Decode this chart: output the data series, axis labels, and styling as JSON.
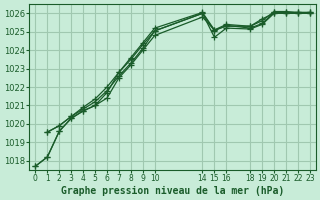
{
  "background_color": "#c8ecd8",
  "grid_color": "#a0c8b0",
  "line_color": "#1a5c2a",
  "text_color": "#1a5c2a",
  "xlabel": "Graphe pression niveau de la mer (hPa)",
  "ylim": [
    1017.5,
    1026.5
  ],
  "yticks": [
    1018,
    1019,
    1020,
    1021,
    1022,
    1023,
    1024,
    1025,
    1026
  ],
  "xtick_positions": [
    0,
    1,
    2,
    3,
    4,
    5,
    6,
    7,
    8,
    9,
    10,
    14,
    15,
    16,
    18,
    19,
    20,
    21,
    22,
    23
  ],
  "xtick_labels": [
    "0",
    "1",
    "2",
    "3",
    "4",
    "5",
    "6",
    "7",
    "8",
    "9",
    "10",
    "14",
    "15",
    "16",
    "18",
    "19",
    "20",
    "21",
    "22",
    "23"
  ],
  "lines": [
    {
      "x": [
        0,
        1,
        2,
        3,
        4,
        5,
        6,
        7,
        8,
        9,
        10,
        14,
        15,
        16,
        18,
        19,
        20,
        21,
        22,
        23
      ],
      "y": [
        1017.7,
        1018.2,
        1019.6,
        1020.3,
        1020.7,
        1021.0,
        1021.7,
        1022.8,
        1023.5,
        1024.3,
        1025.05,
        1026.0,
        1024.7,
        1025.2,
        1025.15,
        1025.4,
        1026.0,
        1026.0,
        1026.0,
        1026.0
      ]
    },
    {
      "x": [
        0,
        1,
        2,
        3,
        4,
        5,
        6,
        7,
        8,
        9,
        10,
        14,
        15,
        16,
        18,
        19,
        20,
        21,
        22,
        23
      ],
      "y": [
        1017.7,
        1018.2,
        1019.6,
        1020.3,
        1020.7,
        1021.0,
        1021.4,
        1022.5,
        1023.2,
        1024.0,
        1024.8,
        1025.8,
        1025.1,
        1025.3,
        1025.3,
        1025.7,
        1026.0,
        1026.0,
        1026.0,
        1026.0
      ]
    },
    {
      "x": [
        1,
        2,
        3,
        4,
        5,
        6,
        7,
        8,
        9,
        10,
        14,
        15,
        16,
        18,
        19,
        20,
        21,
        22,
        23
      ],
      "y": [
        1019.55,
        1019.9,
        1020.4,
        1020.8,
        1021.2,
        1021.8,
        1022.6,
        1023.3,
        1024.1,
        1025.05,
        1026.0,
        1025.05,
        1025.35,
        1025.2,
        1025.45,
        1026.05,
        1026.05,
        1026.05,
        1026.05
      ]
    },
    {
      "x": [
        1,
        2,
        3,
        4,
        5,
        6,
        7,
        8,
        9,
        10,
        14,
        15,
        16,
        18,
        19,
        20,
        21,
        22,
        23
      ],
      "y": [
        1019.55,
        1019.9,
        1020.4,
        1020.9,
        1021.35,
        1022.0,
        1022.8,
        1023.6,
        1024.4,
        1025.2,
        1026.05,
        1025.1,
        1025.4,
        1025.3,
        1025.6,
        1026.1,
        1026.1,
        1026.05,
        1026.05
      ]
    }
  ]
}
